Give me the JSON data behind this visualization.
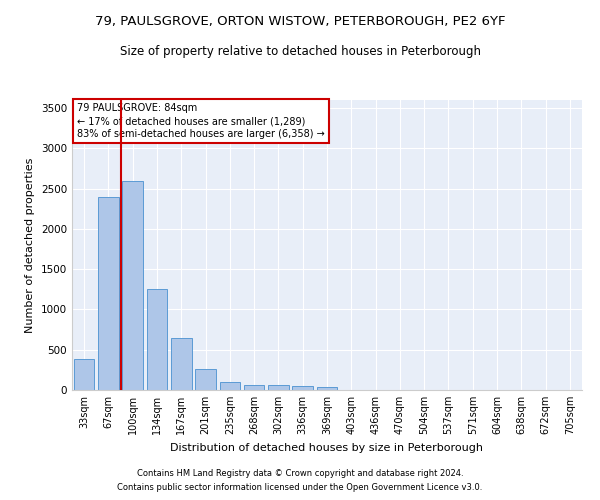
{
  "title1": "79, PAULSGROVE, ORTON WISTOW, PETERBOROUGH, PE2 6YF",
  "title2": "Size of property relative to detached houses in Peterborough",
  "xlabel": "Distribution of detached houses by size in Peterborough",
  "ylabel": "Number of detached properties",
  "categories": [
    "33sqm",
    "67sqm",
    "100sqm",
    "134sqm",
    "167sqm",
    "201sqm",
    "235sqm",
    "268sqm",
    "302sqm",
    "336sqm",
    "369sqm",
    "403sqm",
    "436sqm",
    "470sqm",
    "504sqm",
    "537sqm",
    "571sqm",
    "604sqm",
    "638sqm",
    "672sqm",
    "705sqm"
  ],
  "values": [
    390,
    2400,
    2600,
    1250,
    640,
    260,
    100,
    60,
    60,
    45,
    35,
    0,
    0,
    0,
    0,
    0,
    0,
    0,
    0,
    0,
    0
  ],
  "bar_color": "#aec6e8",
  "bar_edge_color": "#5b9bd5",
  "vline_x": 1.52,
  "vline_color": "#cc0000",
  "annotation_box_text": "79 PAULSGROVE: 84sqm\n← 17% of detached houses are smaller (1,289)\n83% of semi-detached houses are larger (6,358) →",
  "ylim": [
    0,
    3600
  ],
  "yticks": [
    0,
    500,
    1000,
    1500,
    2000,
    2500,
    3000,
    3500
  ],
  "bg_color": "#e8eef8",
  "footer1": "Contains HM Land Registry data © Crown copyright and database right 2024.",
  "footer2": "Contains public sector information licensed under the Open Government Licence v3.0.",
  "title1_fontsize": 9.5,
  "title2_fontsize": 8.5,
  "bar_width": 0.85
}
